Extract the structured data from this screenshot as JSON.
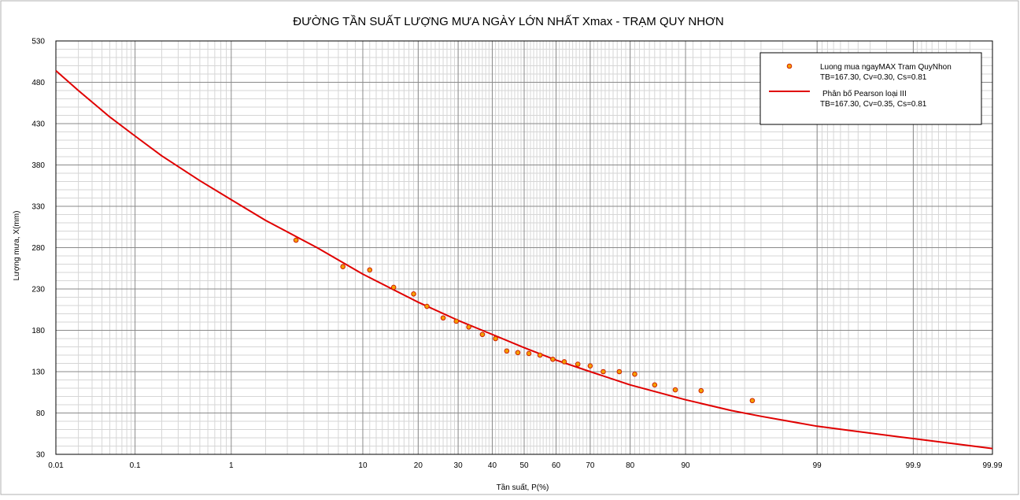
{
  "chart_data": {
    "type": "scatter",
    "title": "ĐƯỜNG TẦN SUẤT LƯỢNG MƯA NGÀY LỚN NHẤT Xmax - TRẠM QUY NHƠN",
    "xlabel": "Tần suất, P(%)",
    "ylabel": "Lượng mưa, X(mm)",
    "x_scale": "normal-probability",
    "xlim": [
      0.01,
      99.99
    ],
    "ylim": [
      30,
      530
    ],
    "grid": true,
    "legend_position": "top-right",
    "x_ticks": [
      {
        "value": 0.01,
        "label": "0.01"
      },
      {
        "value": 0.1,
        "label": "0.1"
      },
      {
        "value": 1,
        "label": "1"
      },
      {
        "value": 10,
        "label": "10"
      },
      {
        "value": 20,
        "label": "20"
      },
      {
        "value": 30,
        "label": "30"
      },
      {
        "value": 40,
        "label": "40"
      },
      {
        "value": 50,
        "label": "50"
      },
      {
        "value": 60,
        "label": "60"
      },
      {
        "value": 70,
        "label": "70"
      },
      {
        "value": 80,
        "label": "80"
      },
      {
        "value": 90,
        "label": "90"
      },
      {
        "value": 99,
        "label": "99"
      },
      {
        "value": 99.9,
        "label": "99.9"
      },
      {
        "value": 99.99,
        "label": "99.99"
      }
    ],
    "y_ticks": [
      "30",
      "80",
      "130",
      "180",
      "230",
      "280",
      "330",
      "380",
      "430",
      "480",
      "530"
    ],
    "series": [
      {
        "name": "Luong mua ngayMAX Tram QuyNhon",
        "stats": "TB=167.30, Cv=0.30, Cs=0.81",
        "kind": "points",
        "color": "#f5a000",
        "edge_color": "#d02000",
        "x": [
          3.5,
          7.5,
          11,
          15,
          19,
          22,
          26,
          29.5,
          33,
          37,
          41,
          44.5,
          48,
          51.5,
          55,
          59,
          62.5,
          66.5,
          70,
          73.5,
          77.5,
          81,
          85,
          88.5,
          92,
          96.5
        ],
        "y": [
          289,
          257,
          253,
          232,
          224,
          209,
          195,
          191,
          184,
          175,
          170,
          155,
          153,
          152,
          150,
          145,
          142,
          139,
          137,
          130,
          130,
          127,
          114,
          108,
          107,
          95
        ]
      },
      {
        "name": "Phân bố Pearson loại III",
        "stats": "TB=167.30, Cv=0.35, Cs=0.81",
        "kind": "line",
        "color": "#e00000",
        "x": [
          0.01,
          0.02,
          0.05,
          0.1,
          0.2,
          0.5,
          1,
          2,
          3,
          5,
          10,
          20,
          30,
          40,
          50,
          60,
          70,
          80,
          90,
          95,
          97,
          99,
          99.5,
          99.9,
          99.99
        ],
        "y": [
          494,
          470,
          438,
          415,
          391,
          361,
          338,
          313,
          299,
          280,
          248,
          214,
          192,
          175,
          159,
          144,
          130,
          114,
          96,
          83,
          76,
          64,
          59,
          49,
          37
        ]
      }
    ]
  }
}
